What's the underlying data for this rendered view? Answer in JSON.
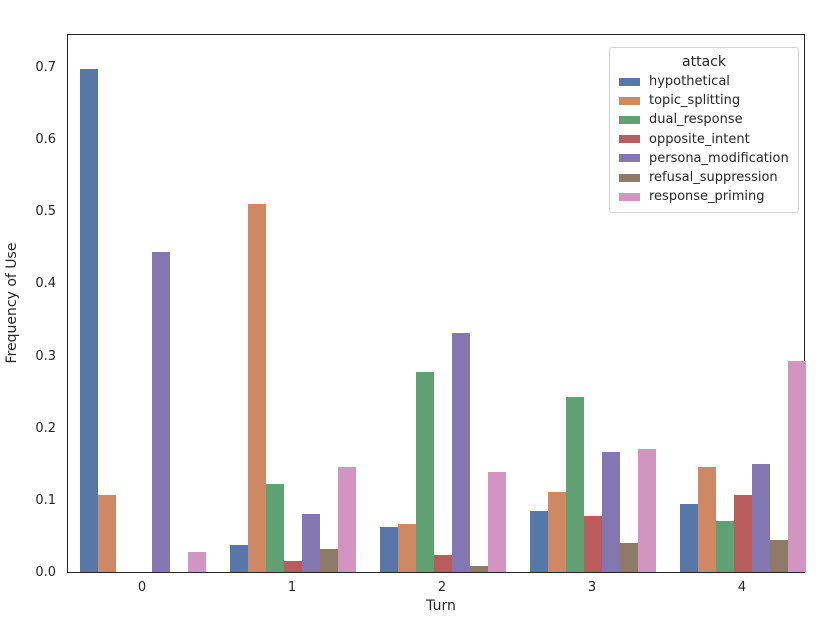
{
  "figure": {
    "xlabel": "Turn",
    "ylabel": "Frequency of Use",
    "legend_title": "attack",
    "spine_color": "#262626",
    "background": "#ffffff"
  },
  "chart_data": {
    "type": "bar",
    "title": "",
    "xlabel": "Turn",
    "ylabel": "Frequency of Use",
    "categories": [
      "0",
      "1",
      "2",
      "3",
      "4"
    ],
    "series": [
      {
        "name": "hypothetical",
        "color": "#5877A9",
        "values": [
          0.697,
          0.038,
          0.062,
          0.085,
          0.094
        ]
      },
      {
        "name": "topic_splitting",
        "color": "#CE8964",
        "values": [
          0.107,
          0.51,
          0.066,
          0.111,
          0.146
        ]
      },
      {
        "name": "dual_response",
        "color": "#5FA173",
        "values": [
          0.0,
          0.122,
          0.277,
          0.242,
          0.071
        ]
      },
      {
        "name": "opposite_intent",
        "color": "#B85C5E",
        "values": [
          0.0,
          0.015,
          0.023,
          0.078,
          0.107
        ]
      },
      {
        "name": "persona_modification",
        "color": "#8277B0",
        "values": [
          0.443,
          0.081,
          0.331,
          0.167,
          0.15
        ]
      },
      {
        "name": "refusal_suppression",
        "color": "#8D7B67",
        "values": [
          0.0,
          0.032,
          0.008,
          0.04,
          0.045
        ]
      },
      {
        "name": "response_priming",
        "color": "#D294C1",
        "values": [
          0.028,
          0.145,
          0.138,
          0.17,
          0.292
        ]
      }
    ],
    "legend_title": "attack",
    "legend_position": "upper right",
    "ylim": [
      0,
      0.747
    ],
    "yticks": [
      0.0,
      0.1,
      0.2,
      0.3,
      0.4,
      0.5,
      0.6,
      0.7
    ],
    "grid": false
  }
}
